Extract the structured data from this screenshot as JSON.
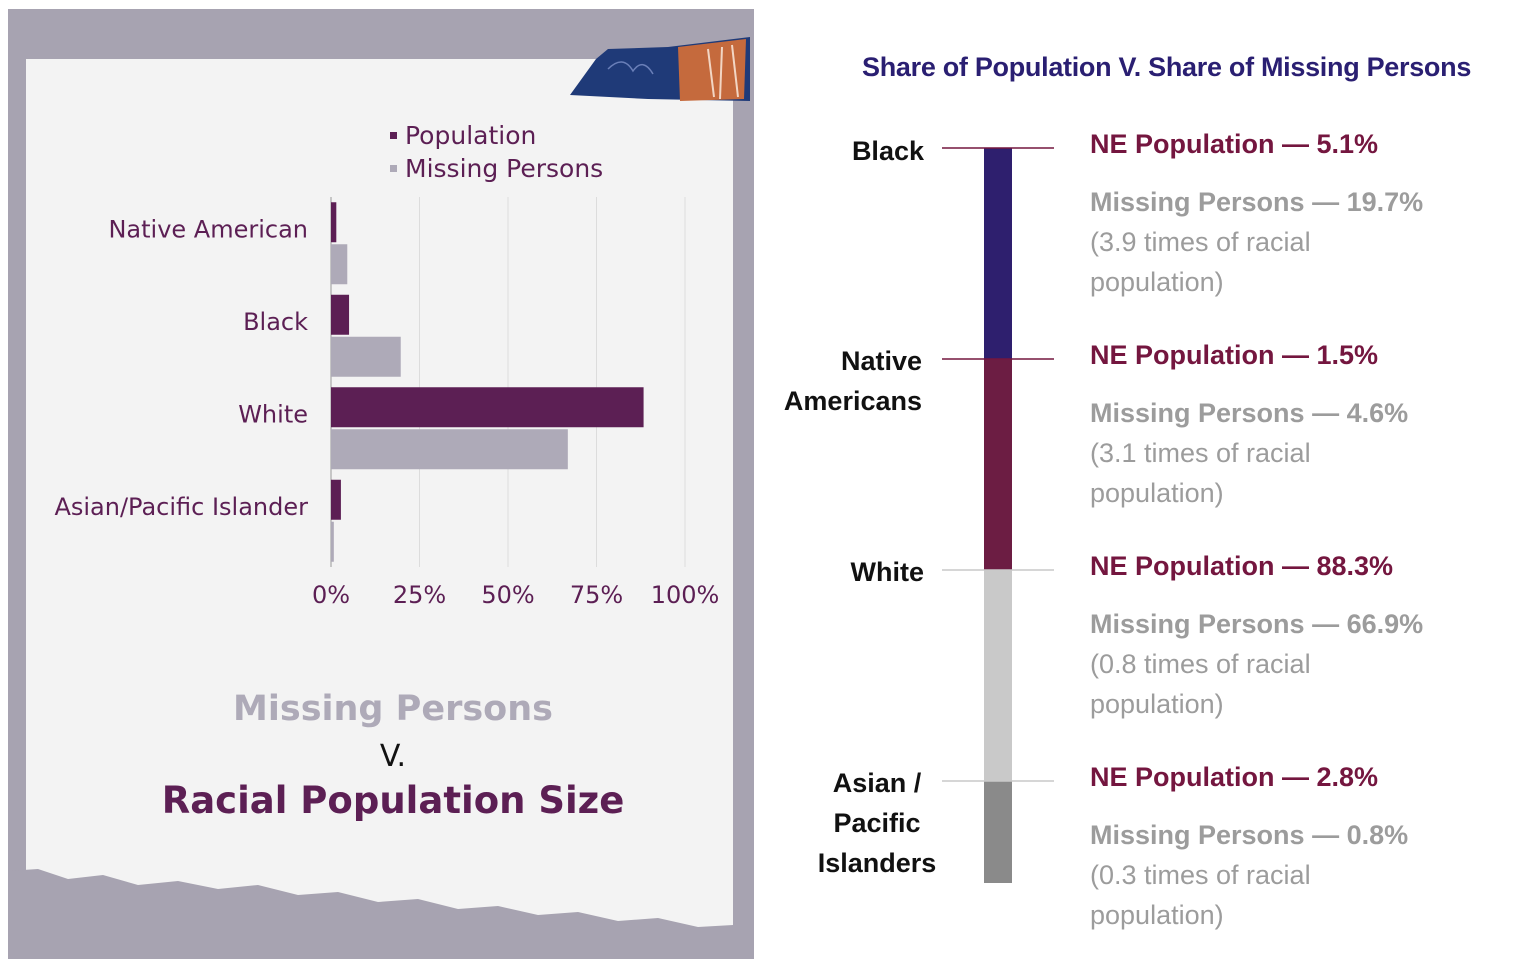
{
  "left": {
    "legend": [
      {
        "label": "Population",
        "color": "#5c1f54"
      },
      {
        "label": "Missing Persons",
        "color": "#aeaab8"
      }
    ],
    "title_line1": "Missing Persons",
    "title_line2": "V.",
    "title_line3": "Racial Population Size"
  },
  "right": {
    "title": "Share of Population V. Share of Missing Persons",
    "rows": [
      {
        "label": "Black",
        "pop": "NE Population — 5.1%",
        "miss": "Missing Persons — 19.7%",
        "note1": "(3.9 times of racial",
        "note2": "population)",
        "color": "#2e1f6e"
      },
      {
        "label": "Native Americans",
        "pop": "NE Population — 1.5%",
        "miss": "Missing Persons — 4.6%",
        "note1": "(3.1 times of racial",
        "note2": "population)",
        "color": "#6c1d43"
      },
      {
        "label": "White",
        "pop": "NE Population — 88.3%",
        "miss": "Missing Persons — 66.9%",
        "note1": "(0.8 times of racial",
        "note2": "population)",
        "color": "#c9c9c9"
      },
      {
        "label": "Asian / Pacific Islanders",
        "pop": "NE Population — 2.8%",
        "miss": "Missing Persons — 0.8%",
        "note1": "(0.3 times of racial",
        "note2": "population)",
        "color": "#8a8a8a"
      }
    ]
  },
  "chart_data": [
    {
      "type": "bar",
      "orientation": "horizontal",
      "categories": [
        "Native American",
        "Black",
        "White",
        "Asian/Pacific Islander"
      ],
      "series": [
        {
          "name": "Population",
          "values": [
            1.5,
            5.1,
            88.3,
            2.8
          ],
          "color": "#5c1f54"
        },
        {
          "name": "Missing Persons",
          "values": [
            4.6,
            19.7,
            66.9,
            0.8
          ],
          "color": "#aeaab8"
        }
      ],
      "xticks": [
        "0%",
        "25%",
        "50%",
        "75%",
        "100%"
      ],
      "xlim": [
        0,
        100
      ],
      "grid": true,
      "legend": "top",
      "title": "Missing Persons V. Racial Population Size"
    },
    {
      "type": "table",
      "title": "Share of Population V. Share of Missing Persons",
      "categories": [
        "Black",
        "Native Americans",
        "White",
        "Asian / Pacific Islanders"
      ],
      "series": [
        {
          "name": "NE Population",
          "values": [
            5.1,
            1.5,
            88.3,
            2.8
          ]
        },
        {
          "name": "Missing Persons",
          "values": [
            19.7,
            4.6,
            66.9,
            0.8
          ]
        }
      ],
      "ratio": [
        3.9,
        3.1,
        0.8,
        0.3
      ]
    }
  ]
}
